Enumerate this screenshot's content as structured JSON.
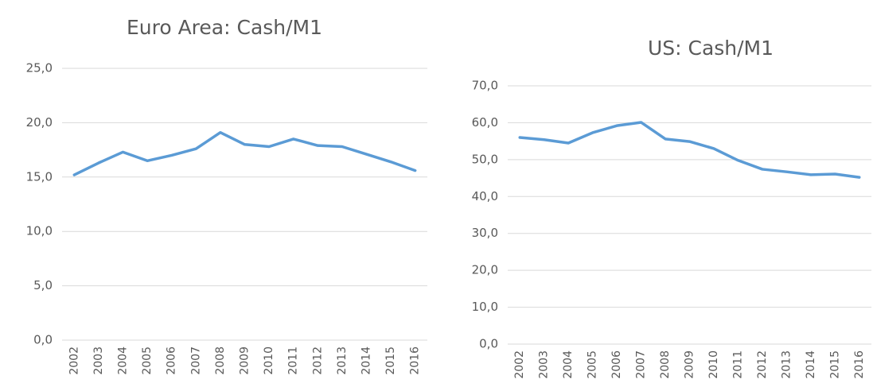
{
  "chart_data": [
    {
      "type": "line",
      "title": "Euro Area: Cash/M1",
      "categories": [
        "2002",
        "2003",
        "2004",
        "2005",
        "2006",
        "2007",
        "2008",
        "2009",
        "2010",
        "2011",
        "2012",
        "2013",
        "2014",
        "2015",
        "2016"
      ],
      "series": [
        {
          "color": "#5b9bd5",
          "values": [
            15.2,
            16.3,
            17.3,
            16.5,
            17.0,
            17.6,
            19.1,
            18.0,
            17.8,
            18.5,
            17.9,
            17.8,
            17.1,
            16.4,
            15.6
          ]
        }
      ],
      "ylim": [
        0,
        25
      ],
      "yticks": [
        {
          "value": 0,
          "label": "0,0"
        },
        {
          "value": 5,
          "label": "5,0"
        },
        {
          "value": 10,
          "label": "10,0"
        },
        {
          "value": 15,
          "label": "15,0"
        },
        {
          "value": 20,
          "label": "20,0"
        },
        {
          "value": 25,
          "label": "25,0"
        }
      ],
      "grid": true
    },
    {
      "type": "line",
      "title": "US: Cash/M1",
      "categories": [
        "2002",
        "2003",
        "2004",
        "2005",
        "2006",
        "2007",
        "2008",
        "2009",
        "2010",
        "2011",
        "2012",
        "2013",
        "2014",
        "2015",
        "2016"
      ],
      "series": [
        {
          "color": "#5b9bd5",
          "values": [
            56.0,
            55.4,
            54.5,
            57.3,
            59.2,
            60.1,
            55.6,
            54.9,
            53.0,
            49.8,
            47.4,
            46.7,
            45.9,
            46.1,
            45.2
          ]
        }
      ],
      "ylim": [
        0,
        70
      ],
      "yticks": [
        {
          "value": 0,
          "label": "0,0"
        },
        {
          "value": 10,
          "label": "10,0"
        },
        {
          "value": 20,
          "label": "20,0"
        },
        {
          "value": 30,
          "label": "30,0"
        },
        {
          "value": 40,
          "label": "40,0"
        },
        {
          "value": 50,
          "label": "50,0"
        },
        {
          "value": 60,
          "label": "60,0"
        },
        {
          "value": 70,
          "label": "70,0"
        }
      ],
      "grid": true
    }
  ]
}
